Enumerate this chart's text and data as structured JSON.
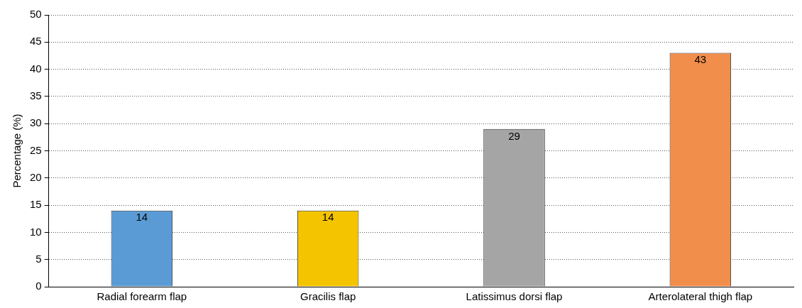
{
  "chart_data": {
    "type": "bar",
    "ylabel": "Percentage (%)",
    "categories": [
      "Radial forearm flap",
      "Gracilis flap",
      "Latissimus dorsi flap",
      "Arterolateral thigh flap"
    ],
    "values": [
      14,
      14,
      29,
      43
    ],
    "colors": [
      "#5b9bd5",
      "#f5c400",
      "#a5a5a5",
      "#f28e4b"
    ],
    "ylim": [
      0,
      50
    ],
    "yticks": [
      0,
      5,
      10,
      15,
      20,
      25,
      30,
      35,
      40,
      45,
      50
    ],
    "grid": "y",
    "data_labels": true,
    "legend": false
  }
}
